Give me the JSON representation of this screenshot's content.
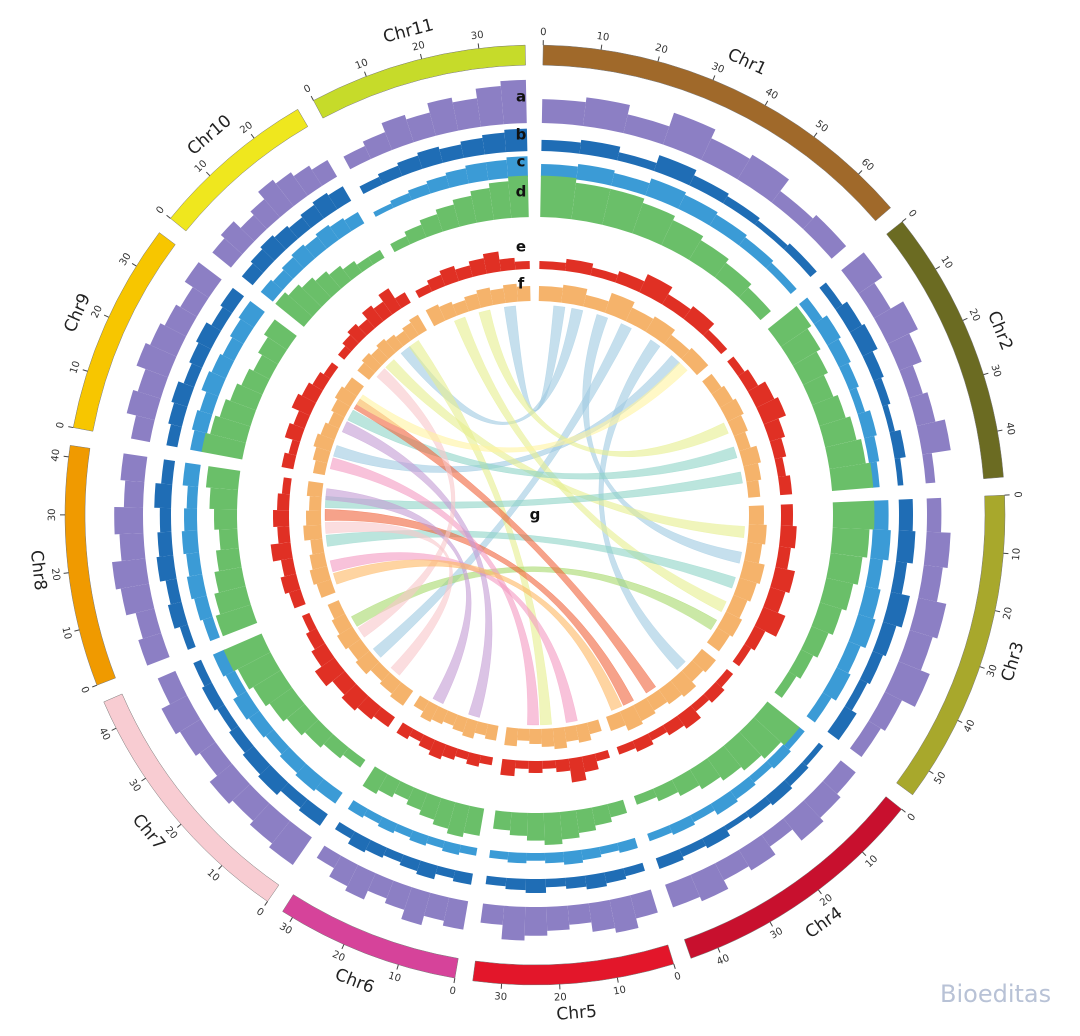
{
  "chart_data": {
    "type": "circos",
    "ylim": [
      0,
      10
    ],
    "chromosomes": [
      {
        "name": "Chr1",
        "length": 68,
        "color": "#a0692a",
        "ticks": [
          0,
          10,
          20,
          30,
          40,
          50,
          60
        ]
      },
      {
        "name": "Chr2",
        "length": 48,
        "color": "#6b6b22",
        "ticks": [
          0,
          10,
          20,
          30,
          40
        ]
      },
      {
        "name": "Chr3",
        "length": 55,
        "color": "#a8a82c",
        "ticks": [
          0,
          10,
          20,
          30,
          40,
          50
        ]
      },
      {
        "name": "Chr4",
        "length": 45,
        "color": "#c8102e",
        "ticks": [
          0,
          10,
          20,
          30,
          40
        ]
      },
      {
        "name": "Chr5",
        "length": 35,
        "color": "#e3162a",
        "ticks": [
          0,
          10,
          20,
          30
        ]
      },
      {
        "name": "Chr6",
        "length": 32,
        "color": "#d6439a",
        "ticks": [
          0,
          10,
          20,
          30
        ]
      },
      {
        "name": "Chr7",
        "length": 45,
        "color": "#f8ccd2",
        "ticks": [
          0,
          10,
          20,
          30,
          40
        ]
      },
      {
        "name": "Chr8",
        "length": 42,
        "color": "#f09a00",
        "ticks": [
          0,
          10,
          20,
          30,
          40
        ]
      },
      {
        "name": "Chr9",
        "length": 37,
        "color": "#f7c600",
        "ticks": [
          0,
          10,
          20,
          30
        ]
      },
      {
        "name": "Chr10",
        "length": 29,
        "color": "#efe71e",
        "ticks": [
          0,
          10,
          20
        ]
      },
      {
        "name": "Chr11",
        "length": 38,
        "color": "#c6db2a",
        "ticks": [
          0,
          10,
          20,
          30
        ]
      }
    ],
    "tracks": [
      {
        "label": "a",
        "color": "#8c7fc4",
        "values": [
          [
            5,
            6,
            4,
            7,
            5,
            6,
            3,
            4
          ],
          [
            6,
            4,
            7,
            5,
            3,
            4,
            6,
            2
          ],
          [
            3,
            5,
            4,
            6,
            5,
            7,
            4,
            3
          ],
          [
            4,
            5,
            6,
            3,
            5,
            4,
            6,
            5
          ],
          [
            5,
            7,
            6,
            4,
            5,
            6,
            7,
            4
          ],
          [
            6,
            5,
            7,
            5,
            4,
            6,
            5,
            3
          ],
          [
            7,
            6,
            5,
            6,
            4,
            5,
            6,
            4
          ],
          [
            5,
            4,
            6,
            7,
            5,
            6,
            4,
            5
          ],
          [
            4,
            6,
            5,
            7,
            6,
            5,
            4,
            6
          ],
          [
            5,
            6,
            4,
            5,
            7,
            6,
            5,
            4
          ],
          [
            3,
            4,
            6,
            5,
            7,
            6,
            8,
            9
          ]
        ]
      },
      {
        "label": "b",
        "color": "#1f6db5",
        "values": [
          [
            4,
            5,
            3,
            6,
            4,
            3,
            2,
            3
          ],
          [
            3,
            5,
            6,
            4,
            3,
            2,
            4,
            2
          ],
          [
            5,
            6,
            4,
            7,
            5,
            4,
            3,
            5
          ],
          [
            2,
            3,
            4,
            3,
            2,
            4,
            3,
            4
          ],
          [
            3,
            4,
            5,
            4,
            3,
            5,
            4,
            3
          ],
          [
            4,
            3,
            5,
            4,
            3,
            4,
            5,
            3
          ],
          [
            5,
            4,
            6,
            5,
            4,
            3,
            4,
            3
          ],
          [
            3,
            5,
            4,
            6,
            5,
            4,
            6,
            4
          ],
          [
            4,
            5,
            6,
            4,
            5,
            6,
            4,
            5
          ],
          [
            5,
            6,
            7,
            6,
            5,
            6,
            7,
            6
          ],
          [
            3,
            4,
            5,
            6,
            5,
            6,
            7,
            8
          ]
        ]
      },
      {
        "label": "c",
        "color": "#3b9bd6",
        "values": [
          [
            5,
            6,
            5,
            7,
            6,
            5,
            4,
            3
          ],
          [
            4,
            6,
            5,
            4,
            3,
            5,
            4,
            3
          ],
          [
            6,
            7,
            5,
            6,
            7,
            5,
            6,
            4
          ],
          [
            3,
            4,
            3,
            4,
            5,
            3,
            4,
            3
          ],
          [
            4,
            3,
            4,
            5,
            4,
            3,
            4,
            3
          ],
          [
            3,
            4,
            3,
            4,
            3,
            4,
            3,
            4
          ],
          [
            5,
            6,
            5,
            4,
            5,
            6,
            4,
            5
          ],
          [
            4,
            5,
            6,
            5,
            6,
            5,
            4,
            6
          ],
          [
            5,
            6,
            5,
            7,
            6,
            5,
            6,
            7
          ],
          [
            6,
            5,
            6,
            7,
            6,
            7,
            6,
            5
          ],
          [
            2,
            3,
            4,
            5,
            6,
            7,
            7,
            8
          ]
        ]
      },
      {
        "label": "d",
        "color": "#6abf69",
        "values": [
          [
            9,
            8,
            8,
            7,
            6,
            5,
            4,
            3
          ],
          [
            8,
            7,
            6,
            5,
            6,
            7,
            8,
            9
          ],
          [
            9,
            8,
            7,
            6,
            5,
            4,
            3,
            2
          ],
          [
            9,
            8,
            7,
            6,
            5,
            4,
            3,
            2
          ],
          [
            3,
            4,
            5,
            6,
            7,
            6,
            5,
            4
          ],
          [
            6,
            7,
            6,
            5,
            4,
            3,
            4,
            5
          ],
          [
            2,
            3,
            4,
            5,
            6,
            7,
            8,
            9
          ],
          [
            8,
            7,
            6,
            5,
            4,
            5,
            6,
            7
          ],
          [
            9,
            8,
            7,
            6,
            5,
            4,
            5,
            6
          ],
          [
            8,
            7,
            6,
            5,
            4,
            3,
            2,
            2
          ],
          [
            2,
            3,
            4,
            5,
            6,
            7,
            8,
            9
          ]
        ]
      },
      {
        "label": "e",
        "color": "#e03024",
        "values": [
          [
            2,
            3,
            2,
            3,
            5,
            3,
            4,
            2
          ],
          [
            2,
            3,
            5,
            6,
            4,
            3,
            2,
            3
          ],
          [
            3,
            4,
            3,
            5,
            4,
            6,
            3,
            2
          ],
          [
            2,
            3,
            2,
            4,
            3,
            2,
            3,
            2
          ],
          [
            2,
            4,
            6,
            3,
            2,
            3,
            2,
            4
          ],
          [
            2,
            3,
            2,
            3,
            4,
            3,
            2,
            3
          ],
          [
            3,
            4,
            5,
            4,
            6,
            4,
            3,
            2
          ],
          [
            3,
            4,
            3,
            5,
            3,
            4,
            3,
            2
          ],
          [
            3,
            2,
            4,
            3,
            5,
            4,
            3,
            2
          ],
          [
            2,
            3,
            4,
            3,
            5,
            4,
            6,
            3
          ],
          [
            2,
            3,
            4,
            3,
            4,
            5,
            3,
            2
          ]
        ]
      },
      {
        "label": "f",
        "color": "#f5b36b",
        "values": [
          [
            5,
            6,
            4,
            7,
            5,
            6,
            4,
            5
          ],
          [
            4,
            5,
            6,
            5,
            4,
            6,
            5,
            4
          ],
          [
            5,
            6,
            5,
            7,
            6,
            5,
            6,
            5
          ],
          [
            6,
            5,
            7,
            6,
            5,
            6,
            7,
            5
          ],
          [
            4,
            6,
            5,
            7,
            6,
            5,
            4,
            6
          ],
          [
            5,
            4,
            6,
            5,
            4,
            5,
            6,
            4
          ],
          [
            6,
            5,
            4,
            6,
            5,
            6,
            5,
            4
          ],
          [
            5,
            6,
            5,
            4,
            6,
            5,
            4,
            5
          ],
          [
            4,
            5,
            6,
            5,
            4,
            5,
            6,
            5
          ],
          [
            5,
            6,
            5,
            6,
            5,
            4,
            5,
            6
          ],
          [
            6,
            5,
            4,
            5,
            6,
            5,
            6,
            5
          ]
        ]
      }
    ],
    "links_label": "g",
    "links": [
      {
        "from": [
          0,
          8
        ],
        "to": [
          10,
          30
        ],
        "color": "#9ecae1"
      },
      {
        "from": [
          0,
          15
        ],
        "to": [
          9,
          18
        ],
        "color": "#9ecae1"
      },
      {
        "from": [
          0,
          25
        ],
        "to": [
          2,
          20
        ],
        "color": "#9ecae1"
      },
      {
        "from": [
          0,
          35
        ],
        "to": [
          6,
          20
        ],
        "color": "#9ecae1"
      },
      {
        "from": [
          0,
          48
        ],
        "to": [
          3,
          10
        ],
        "color": "#9ecae1"
      },
      {
        "from": [
          0,
          58
        ],
        "to": [
          8,
          10
        ],
        "color": "#9ecae1"
      },
      {
        "from": [
          10,
          10
        ],
        "to": [
          2,
          40
        ],
        "color": "#e6ef8e"
      },
      {
        "from": [
          10,
          20
        ],
        "to": [
          1,
          20
        ],
        "color": "#e6ef8e"
      },
      {
        "from": [
          9,
          10
        ],
        "to": [
          2,
          10
        ],
        "color": "#e6ef8e"
      },
      {
        "from": [
          9,
          22
        ],
        "to": [
          4,
          20
        ],
        "color": "#e6ef8e"
      },
      {
        "from": [
          1,
          30
        ],
        "to": [
          8,
          25
        ],
        "color": "#8dd3c7"
      },
      {
        "from": [
          1,
          40
        ],
        "to": [
          7,
          35
        ],
        "color": "#8dd3c7"
      },
      {
        "from": [
          2,
          30
        ],
        "to": [
          7,
          20
        ],
        "color": "#8dd3c7"
      },
      {
        "from": [
          2,
          48
        ],
        "to": [
          6,
          35
        ],
        "color": "#a6d96a"
      },
      {
        "from": [
          3,
          25
        ],
        "to": [
          8,
          30
        ],
        "color": "#f0643c"
      },
      {
        "from": [
          3,
          35
        ],
        "to": [
          7,
          30
        ],
        "color": "#f0643c"
      },
      {
        "from": [
          4,
          10
        ],
        "to": [
          7,
          10
        ],
        "color": "#f49ac2"
      },
      {
        "from": [
          4,
          25
        ],
        "to": [
          8,
          5
        ],
        "color": "#f49ac2"
      },
      {
        "from": [
          5,
          10
        ],
        "to": [
          8,
          20
        ],
        "color": "#c39bd3"
      },
      {
        "from": [
          5,
          25
        ],
        "to": [
          7,
          38
        ],
        "color": "#c39bd3"
      },
      {
        "from": [
          6,
          10
        ],
        "to": [
          7,
          25
        ],
        "color": "#f9c6c9"
      },
      {
        "from": [
          6,
          30
        ],
        "to": [
          9,
          5
        ],
        "color": "#f9c6c9"
      },
      {
        "from": [
          7,
          5
        ],
        "to": [
          3,
          40
        ],
        "color": "#fdb863"
      },
      {
        "from": [
          8,
          32
        ],
        "to": [
          0,
          62
        ],
        "color": "#fff3a0"
      }
    ]
  },
  "watermark": "Bioeditas"
}
